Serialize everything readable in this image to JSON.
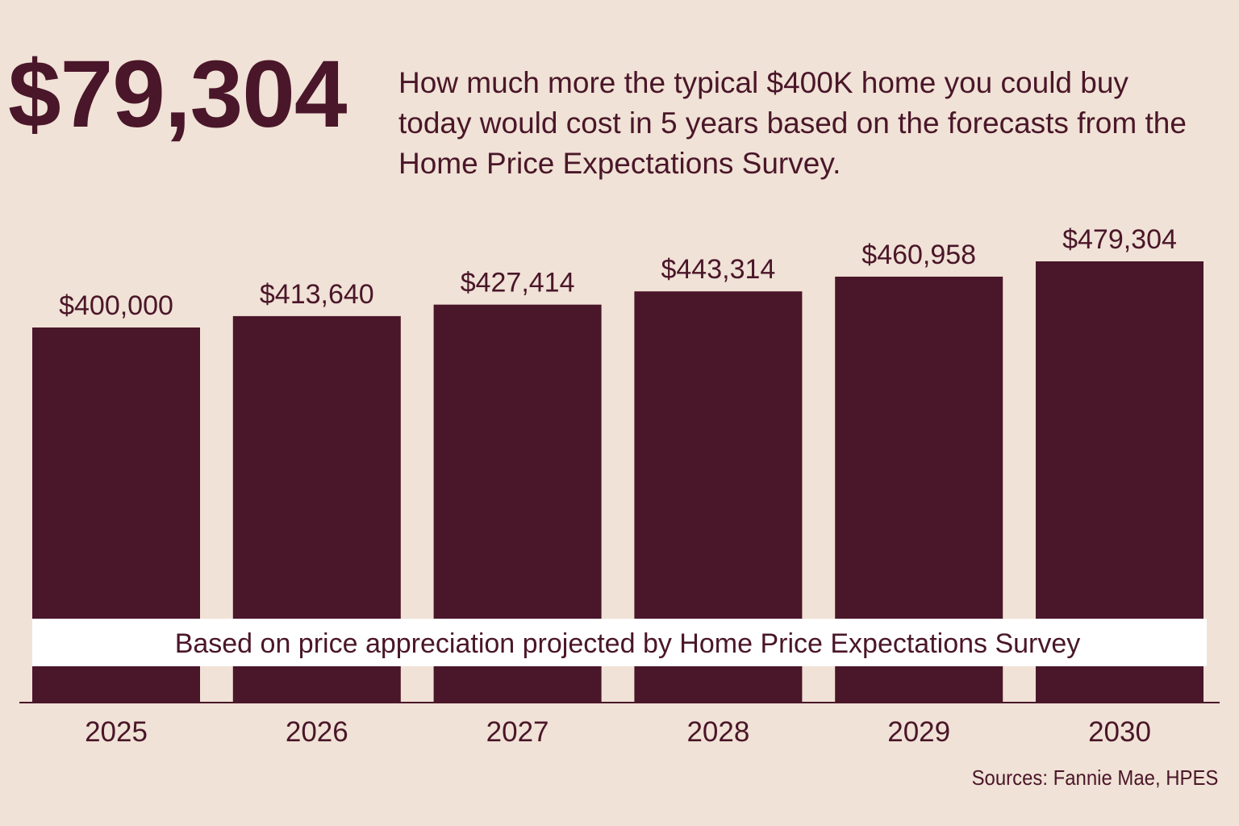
{
  "headline": {
    "amount": "$79,304",
    "description": "How much more the typical $400K home you could buy today would cost in 5 years based on the forecasts from the Home Price Expectations Survey."
  },
  "source": "Sources: Fannie Mae, HPES",
  "colors": {
    "background": "#f0e2d6",
    "bar": "#4a1629",
    "text": "#4a1629",
    "banner": "#ffffff"
  },
  "chart_data": {
    "type": "bar",
    "categories": [
      "2025",
      "2026",
      "2027",
      "2028",
      "2029",
      "2030"
    ],
    "values": [
      400000,
      413640,
      427414,
      443314,
      460958,
      479304
    ],
    "value_labels": [
      "$400,000",
      "$413,640",
      "$427,414",
      "$443,314",
      "$460,958",
      "$479,304"
    ],
    "annotation": "Based on price appreciation projected by Home Price Expectations Survey",
    "title": "",
    "xlabel": "",
    "ylabel": "",
    "grid": false,
    "legend": "none"
  }
}
